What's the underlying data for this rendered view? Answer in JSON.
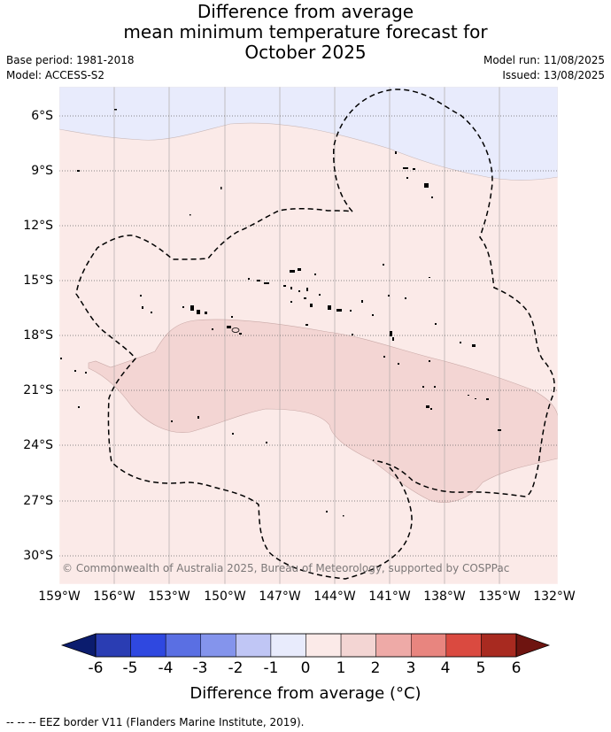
{
  "title": {
    "line1": "Difference from average",
    "line2": "mean minimum temperature forecast for",
    "line3": "October 2025"
  },
  "meta": {
    "base_period": "Base period: 1981-2018",
    "model": "Model: ACCESS-S2",
    "model_run": "Model run: 11/08/2025",
    "issued": "Issued: 13/08/2025"
  },
  "map": {
    "copyright": "© Commonwealth of Australia 2025, Bureau of Meteorology, supported by COSPPac",
    "lat_ticks": [
      "6°S",
      "9°S",
      "12°S",
      "15°S",
      "18°S",
      "21°S",
      "24°S",
      "27°S",
      "30°S"
    ],
    "lon_ticks": [
      "159°W",
      "156°W",
      "153°W",
      "150°W",
      "147°W",
      "144°W",
      "141°W",
      "138°W",
      "135°W",
      "132°W"
    ],
    "region_colors": {
      "minus_0_to_1": "#e8ebfc",
      "plus_0_to_1": "#fbeae8",
      "plus_1_to_2": "#f3d5d3"
    }
  },
  "colorbar": {
    "ticks": [
      "-6",
      "-5",
      "-4",
      "-3",
      "-2",
      "-1",
      "0",
      "1",
      "2",
      "3",
      "4",
      "5",
      "6"
    ],
    "colors": [
      "#0b1c6e",
      "#2a3db3",
      "#2f48e0",
      "#5a6fe3",
      "#8494ec",
      "#c0c6f5",
      "#e8ebfc",
      "#fbeae8",
      "#f3d5d3",
      "#eeaaa7",
      "#e8857f",
      "#da4a40",
      "#a82a20",
      "#6e1410"
    ],
    "title": "Difference from average (°C)"
  },
  "footnote": "-- -- -- EEZ border V11 (Flanders Marine Institute, 2019)."
}
